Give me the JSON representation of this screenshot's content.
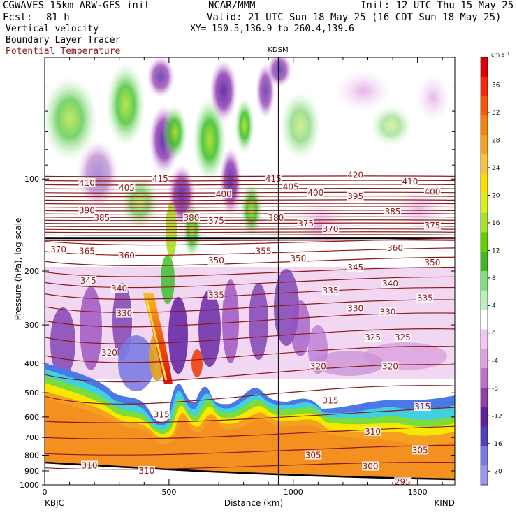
{
  "header": {
    "model": "CGWAVES 15km ARW-GFS init",
    "org": "NCAR/MMM",
    "init": "Init: 12 UTC Thu 15 May 25",
    "fcst_label": "Fcst:",
    "fcst_value": "81 h",
    "valid": "Valid: 21 UTC Sun 18 May 25 (16 CDT Sun 18 May 25)",
    "field1": "Vertical velocity",
    "field2": "Boundary Layer Tracer",
    "field3": "Potential Temperature",
    "xy": "XY= 150.5,136.9 to 260.4,139.6"
  },
  "colors": {
    "theta": "#8b1a1a",
    "title_theta": "#8b1a1a"
  },
  "chart_data": {
    "type": "heatmap",
    "title": "KDSM",
    "xlabel": "Distance (km)",
    "ylabel": "Pressure (hPa), log scale",
    "x_start_label": "KBJC",
    "x_end_label": "KIND",
    "xlim": [
      0,
      1650
    ],
    "ylim": [
      1000,
      40
    ],
    "y_scale": "log",
    "x_ticks": [
      0,
      500,
      1000,
      1500
    ],
    "y_ticks": [
      100,
      200,
      300,
      400,
      500,
      600,
      700,
      800,
      900,
      1000
    ],
    "vertical_marker_km": 940,
    "colorbar": {
      "units": "cm s⁻¹",
      "ticks": [
        36,
        32,
        28,
        24,
        20,
        16,
        12,
        8,
        4,
        0,
        -4,
        -8,
        -12,
        -16,
        -20
      ],
      "colors": [
        "#e0000a",
        "#f02a0a",
        "#f45a0a",
        "#f78010",
        "#f8a020",
        "#fac040",
        "#f7e000",
        "#d8ee20",
        "#a8e030",
        "#60d000",
        "#40b820",
        "#80e080",
        "#b8f0b8",
        "#ffffff",
        "#f0c8f0",
        "#e0a0e0",
        "#c070c8",
        "#9040a8",
        "#6020a0",
        "#5040c0",
        "#7878e8",
        "#9898f0"
      ]
    },
    "theta_labels": [
      {
        "value": "415",
        "x": 465,
        "p": 100
      },
      {
        "value": "415",
        "x": 920,
        "p": 100
      },
      {
        "value": "420",
        "x": 1250,
        "p": 97
      },
      {
        "value": "410",
        "x": 170,
        "p": 103
      },
      {
        "value": "405",
        "x": 330,
        "p": 107
      },
      {
        "value": "400",
        "x": 720,
        "p": 112
      },
      {
        "value": "405",
        "x": 990,
        "p": 106
      },
      {
        "value": "400",
        "x": 1090,
        "p": 111
      },
      {
        "value": "395",
        "x": 1250,
        "p": 114
      },
      {
        "value": "410",
        "x": 1470,
        "p": 102
      },
      {
        "value": "400",
        "x": 1560,
        "p": 110
      },
      {
        "value": "390",
        "x": 170,
        "p": 127
      },
      {
        "value": "385",
        "x": 230,
        "p": 134
      },
      {
        "value": "380",
        "x": 590,
        "p": 134
      },
      {
        "value": "375",
        "x": 690,
        "p": 137
      },
      {
        "value": "380",
        "x": 930,
        "p": 134
      },
      {
        "value": "385",
        "x": 1400,
        "p": 128
      },
      {
        "value": "375",
        "x": 1050,
        "p": 140
      },
      {
        "value": "370",
        "x": 1150,
        "p": 146
      },
      {
        "value": "375",
        "x": 1560,
        "p": 142
      },
      {
        "value": "370",
        "x": 55,
        "p": 170
      },
      {
        "value": "365",
        "x": 170,
        "p": 172
      },
      {
        "value": "360",
        "x": 330,
        "p": 178
      },
      {
        "value": "350",
        "x": 690,
        "p": 185
      },
      {
        "value": "355",
        "x": 880,
        "p": 172
      },
      {
        "value": "350",
        "x": 1020,
        "p": 182
      },
      {
        "value": "360",
        "x": 1410,
        "p": 168
      },
      {
        "value": "350",
        "x": 1560,
        "p": 188
      },
      {
        "value": "345",
        "x": 1250,
        "p": 195
      },
      {
        "value": "345",
        "x": 175,
        "p": 215
      },
      {
        "value": "340",
        "x": 300,
        "p": 228
      },
      {
        "value": "340",
        "x": 1390,
        "p": 220
      },
      {
        "value": "335",
        "x": 690,
        "p": 240
      },
      {
        "value": "335",
        "x": 1150,
        "p": 232
      },
      {
        "value": "335",
        "x": 1530,
        "p": 245
      },
      {
        "value": "330",
        "x": 320,
        "p": 275
      },
      {
        "value": "330",
        "x": 1250,
        "p": 265
      },
      {
        "value": "330",
        "x": 1380,
        "p": 272
      },
      {
        "value": "325",
        "x": 1320,
        "p": 330
      },
      {
        "value": "325",
        "x": 1440,
        "p": 330
      },
      {
        "value": "320",
        "x": 260,
        "p": 370
      },
      {
        "value": "320",
        "x": 1100,
        "p": 410
      },
      {
        "value": "320",
        "x": 1390,
        "p": 410
      },
      {
        "value": "315",
        "x": 470,
        "p": 590
      },
      {
        "value": "315",
        "x": 1150,
        "p": 530
      },
      {
        "value": "315",
        "x": 1520,
        "p": 555
      },
      {
        "value": "310",
        "x": 1320,
        "p": 670
      },
      {
        "value": "305",
        "x": 1080,
        "p": 800
      },
      {
        "value": "305",
        "x": 1510,
        "p": 770
      },
      {
        "value": "300",
        "x": 1310,
        "p": 870
      },
      {
        "value": "310",
        "x": 180,
        "p": 865
      },
      {
        "value": "310",
        "x": 410,
        "p": 900
      },
      {
        "value": "295",
        "x": 1440,
        "p": 980
      }
    ]
  }
}
